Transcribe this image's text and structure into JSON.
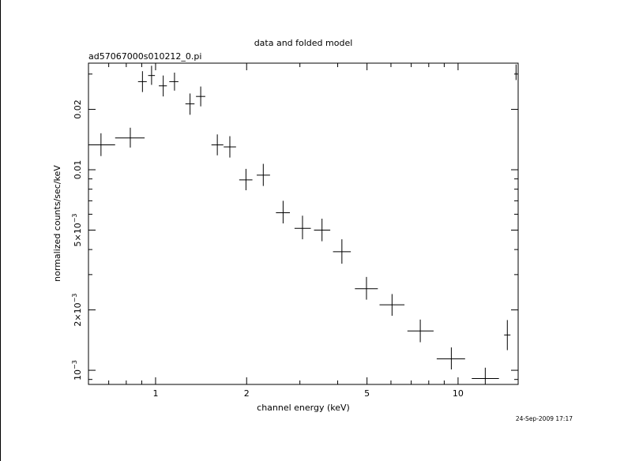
{
  "chart_data": {
    "type": "scatter",
    "title": "data and folded model",
    "subtitle": "ad57067000s010212_0.pi",
    "xlabel": "channel energy (keV)",
    "ylabel": "normalized counts/sec/keV",
    "x_scale": "log",
    "y_scale": "log",
    "xlim": [
      0.6,
      15.8
    ],
    "ylim": [
      0.00085,
      0.034
    ],
    "grid": false,
    "x_ticks": [
      {
        "value": 1,
        "label": "1"
      },
      {
        "value": 2,
        "label": "2"
      },
      {
        "value": 5,
        "label": "5"
      },
      {
        "value": 10,
        "label": "10"
      }
    ],
    "y_ticks": [
      {
        "value": 0.001,
        "label_base": "10",
        "label_exp": "−3"
      },
      {
        "value": 0.002,
        "label_base": "2×10",
        "label_exp": "−3"
      },
      {
        "value": 0.005,
        "label_base": "5×10",
        "label_exp": "−3"
      },
      {
        "value": 0.01,
        "label_base": "0.01",
        "label_exp": ""
      },
      {
        "value": 0.02,
        "label_base": "0.02",
        "label_exp": ""
      }
    ],
    "points": [
      {
        "x": 0.66,
        "xlo": 0.6,
        "xhi": 0.735,
        "y": 0.0133,
        "ylo": 0.0117,
        "yhi": 0.0152
      },
      {
        "x": 0.825,
        "xlo": 0.735,
        "xhi": 0.92,
        "y": 0.0144,
        "ylo": 0.0129,
        "yhi": 0.0162
      },
      {
        "x": 0.905,
        "xlo": 0.875,
        "xhi": 0.935,
        "y": 0.0275,
        "ylo": 0.0244,
        "yhi": 0.031
      },
      {
        "x": 0.97,
        "xlo": 0.945,
        "xhi": 0.995,
        "y": 0.0295,
        "ylo": 0.0265,
        "yhi": 0.033
      },
      {
        "x": 1.06,
        "xlo": 1.025,
        "xhi": 1.09,
        "y": 0.0262,
        "ylo": 0.0232,
        "yhi": 0.0295
      },
      {
        "x": 1.155,
        "xlo": 1.11,
        "xhi": 1.19,
        "y": 0.0275,
        "ylo": 0.0248,
        "yhi": 0.0305
      },
      {
        "x": 1.3,
        "xlo": 1.255,
        "xhi": 1.345,
        "y": 0.0213,
        "ylo": 0.0188,
        "yhi": 0.024
      },
      {
        "x": 1.41,
        "xlo": 1.36,
        "xhi": 1.46,
        "y": 0.0232,
        "ylo": 0.0207,
        "yhi": 0.026
      },
      {
        "x": 1.6,
        "xlo": 1.53,
        "xhi": 1.675,
        "y": 0.0133,
        "ylo": 0.0118,
        "yhi": 0.015
      },
      {
        "x": 1.76,
        "xlo": 1.68,
        "xhi": 1.845,
        "y": 0.013,
        "ylo": 0.0115,
        "yhi": 0.0147
      },
      {
        "x": 1.99,
        "xlo": 1.89,
        "xhi": 2.09,
        "y": 0.0089,
        "ylo": 0.0079,
        "yhi": 0.0101
      },
      {
        "x": 2.27,
        "xlo": 2.16,
        "xhi": 2.39,
        "y": 0.0094,
        "ylo": 0.0083,
        "yhi": 0.0107
      },
      {
        "x": 2.64,
        "xlo": 2.5,
        "xhi": 2.78,
        "y": 0.0061,
        "ylo": 0.0054,
        "yhi": 0.007
      },
      {
        "x": 3.06,
        "xlo": 2.88,
        "xhi": 3.26,
        "y": 0.0051,
        "ylo": 0.0045,
        "yhi": 0.0059
      },
      {
        "x": 3.55,
        "xlo": 3.34,
        "xhi": 3.78,
        "y": 0.005,
        "ylo": 0.0044,
        "yhi": 0.0057
      },
      {
        "x": 4.13,
        "xlo": 3.86,
        "xhi": 4.42,
        "y": 0.0039,
        "ylo": 0.0034,
        "yhi": 0.0045
      },
      {
        "x": 4.98,
        "xlo": 4.56,
        "xhi": 5.43,
        "y": 0.00255,
        "ylo": 0.00225,
        "yhi": 0.00292
      },
      {
        "x": 6.05,
        "xlo": 5.5,
        "xhi": 6.65,
        "y": 0.00212,
        "ylo": 0.00187,
        "yhi": 0.0024
      },
      {
        "x": 7.5,
        "xlo": 6.8,
        "xhi": 8.3,
        "y": 0.00157,
        "ylo": 0.00138,
        "yhi": 0.00179
      },
      {
        "x": 9.5,
        "xlo": 8.5,
        "xhi": 10.55,
        "y": 0.00114,
        "ylo": 0.00101,
        "yhi": 0.0013
      },
      {
        "x": 12.3,
        "xlo": 11.1,
        "xhi": 13.65,
        "y": 0.00091,
        "ylo": 0.00085,
        "yhi": 0.00103
      },
      {
        "x": 14.55,
        "xlo": 14.2,
        "xhi": 14.9,
        "y": 0.0015,
        "ylo": 0.00126,
        "yhi": 0.00178
      },
      {
        "x": 15.55,
        "xlo": 15.5,
        "xhi": 15.6,
        "y": 0.0305,
        "ylo": 0.028,
        "yhi": 0.0335
      }
    ]
  },
  "footer": {
    "timestamp": "24-Sep-2009 17:17"
  }
}
